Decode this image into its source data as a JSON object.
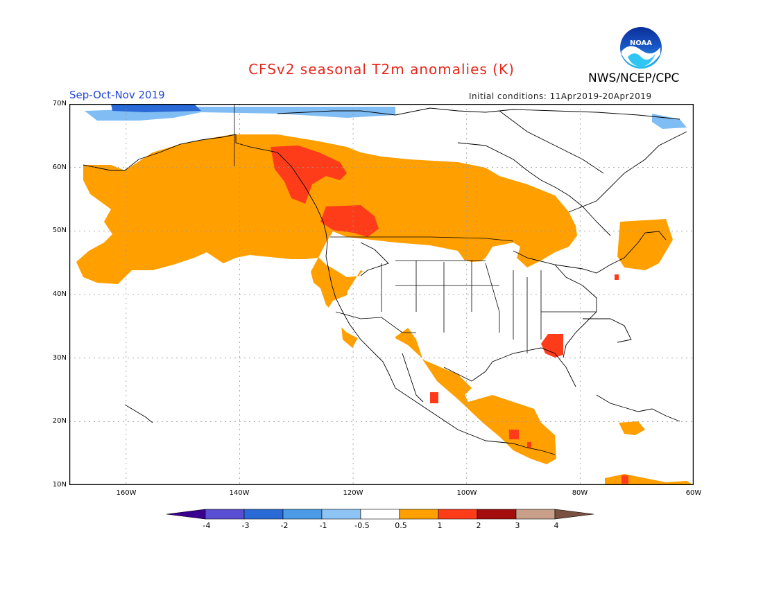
{
  "title": "CFSv2 seasonal T2m anomalies (K)",
  "season": "Sep-Oct-Nov 2019",
  "initial_conditions": "Initial conditions: 11Apr2019-20Apr2019",
  "agency": "NWS/NCEP/CPC",
  "logo_text": "NOAA",
  "colors": {
    "title": "#e8261a",
    "season": "#2146d8",
    "land_outline": "#000000",
    "grid": "#999999",
    "anom_0_5_1": "#ff9f00",
    "anom_1_2": "#ff3c1a",
    "anom_n05_n1": "#7fbdf4",
    "anom_n1_n2": "#4b9be6",
    "anom_n2_n3": "#2a6ad6"
  },
  "lat_labels": [
    "70N",
    "60N",
    "50N",
    "40N",
    "30N",
    "20N",
    "10N"
  ],
  "lon_labels": [
    "160W",
    "140W",
    "120W",
    "100W",
    "80W",
    "60W"
  ],
  "colorbar": {
    "ticks": [
      "-4",
      "-3",
      "-2",
      "-1",
      "-0.5",
      "0.5",
      "1",
      "2",
      "3",
      "4"
    ],
    "colors": [
      "#3a0090",
      "#5a4ed4",
      "#2a6ad6",
      "#4b9be6",
      "#8ec4f4",
      "#ffffff",
      "#ff9f00",
      "#ff3c1a",
      "#a40d0d",
      "#c8a08a",
      "#7a5040"
    ]
  }
}
